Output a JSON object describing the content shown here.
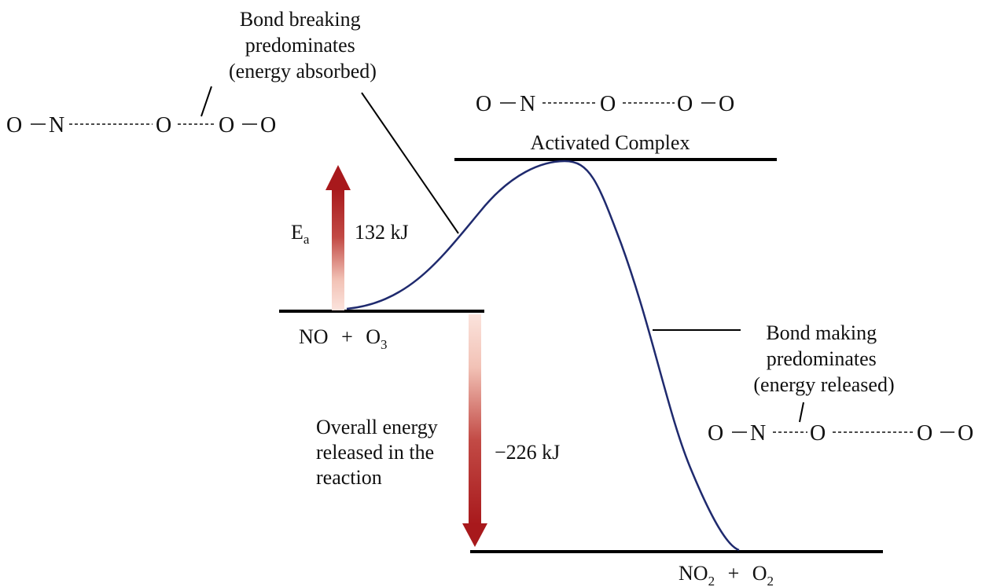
{
  "colors": {
    "curve": "#1f2a6e",
    "arrow": "#a8191c",
    "level": "#000000",
    "text": "#111111"
  },
  "energy": {
    "activation_value": "132 kJ",
    "overall_value": "−226 kJ"
  },
  "labels": {
    "activation_symbol": "E",
    "activation_subscript": "a",
    "activated_complex": "Activated Complex",
    "bond_breaking": [
      "Bond breaking",
      "predominates",
      "(energy absorbed)"
    ],
    "bond_making": [
      "Bond making",
      "predominates",
      "(energy released)"
    ],
    "overall": [
      "Overall energy",
      "released in the",
      "reaction"
    ]
  },
  "species": {
    "reactants": {
      "a": "NO",
      "plus": "+",
      "b": "O",
      "b_sub": "3"
    },
    "products": {
      "a": "NO",
      "a_sub": "2",
      "plus": "+",
      "b": "O",
      "b_sub": "2"
    }
  },
  "atoms": {
    "O": "O",
    "N": "N",
    "bond": "−"
  }
}
